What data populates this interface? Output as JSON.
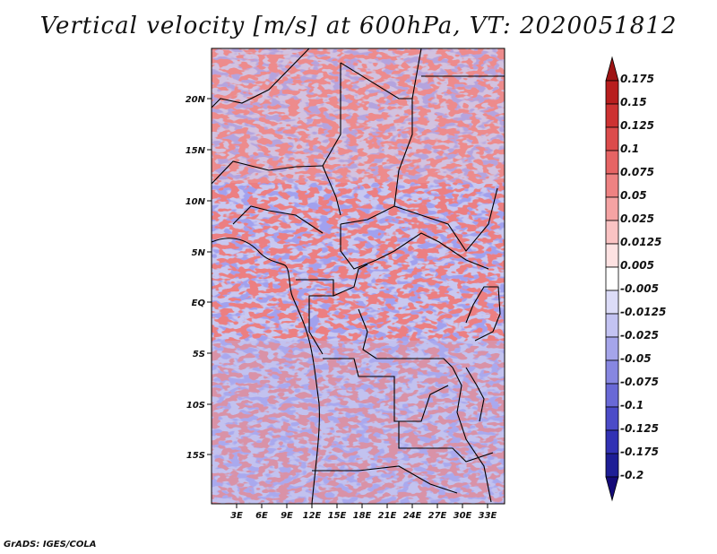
{
  "title": "Vertical velocity [m/s] at 600hPa, VT: 2020051812",
  "credit": "GrADS: IGES/COLA",
  "map": {
    "lat_labels": [
      "20N",
      "15N",
      "10N",
      "5N",
      "EQ",
      "5S",
      "10S",
      "15S"
    ],
    "lon_labels": [
      "3E",
      "6E",
      "9E",
      "12E",
      "15E",
      "18E",
      "21E",
      "24E",
      "27E",
      "30E",
      "33E"
    ],
    "lat_range": [
      -20,
      24
    ],
    "lon_range": [
      0,
      35
    ]
  },
  "colorbar": {
    "labels": [
      "0.175",
      "0.15",
      "0.125",
      "0.1",
      "0.075",
      "0.05",
      "0.025",
      "0.0125",
      "0.005",
      "-0.005",
      "-0.0125",
      "-0.025",
      "-0.05",
      "-0.075",
      "-0.1",
      "-0.125",
      "-0.175",
      "-0.2"
    ],
    "colors": [
      "#9e1414",
      "#b81e1e",
      "#cd3232",
      "#dc4b4b",
      "#e66464",
      "#ee8282",
      "#f5a3a3",
      "#fac3c3",
      "#fde2e2",
      "#ffffff",
      "#dcdcf8",
      "#c3c3f2",
      "#a5a5ea",
      "#8787e1",
      "#6969d6",
      "#4b4bc8",
      "#3232b4",
      "#1e1e96",
      "#140a78"
    ]
  }
}
